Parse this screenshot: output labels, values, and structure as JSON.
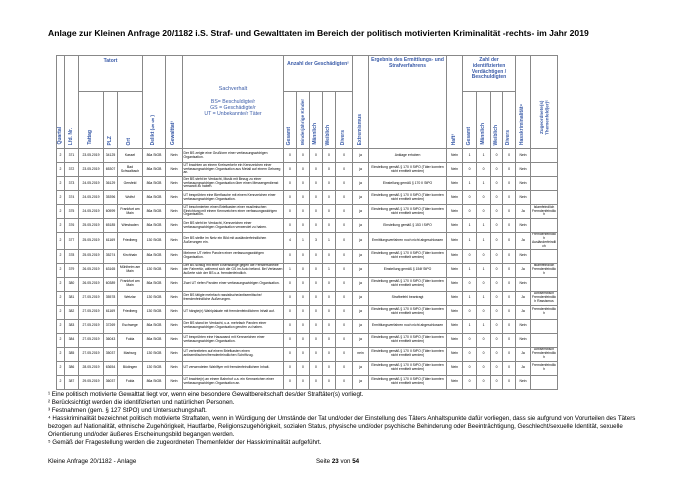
{
  "header": {
    "title": "Anlage zur Kleinen Anfrage 20/1182 i.S. Straf- und Gewalttaten im Bereich der politisch motivierten Kriminalität -rechts- im Jahr 2019"
  },
  "table": {
    "header": {
      "quartal": "Quartal",
      "nr": "Lfd. Nr.",
      "tatort": "Tatort",
      "tattag": "Tattag",
      "plz": "PLZ",
      "ort": "Ort",
      "delikt": "Delikt (§§)",
      "gewalt": "Gewalttat¹",
      "sachverhalt": "Sachverhalt",
      "legend": "BS= Beschuldigte/r\nGS = Geschädigte/r\nUT = Unbekannte/r Täter",
      "anzahl": "Anzahl der Geschädigten²",
      "a_gesamt": "Gesamt",
      "a_minder": "Minderjährige Kinder",
      "a_m": "Männlich",
      "a_w": "Weiblich",
      "a_d": "Divers",
      "extremismus": "Extremismus",
      "ergebnis": "Ergebnis des Ermittlungs- und Strafverfahrens",
      "haft": "Haft³",
      "zahl": "Zahl der identifizierten Verdächtigen / Beschuldigten",
      "z_gesamt": "Gesamt",
      "z_m": "Männlich",
      "z_w": "Weiblich",
      "z_d": "Divers",
      "hass": "Hasskriminalität⁴",
      "themen": "Zugeordnete(s) Themenfeld(er)⁵"
    },
    "rows": [
      [
        2,
        371,
        "23.05.2019",
        34125,
        "Kassel",
        "86a StGB",
        "Nein",
        "Der BS zeigte eine Grußform einer verfassungswidrigen Organisation.",
        0,
        0,
        0,
        0,
        0,
        "ja",
        "Anklage erhoben",
        "Nein",
        1,
        1,
        0,
        0,
        "Nein",
        null
      ],
      [
        2,
        372,
        "23.05.2019",
        65307,
        "Bad Schwalbach",
        "86a StGB",
        "Nein",
        "UT brachten an einem Kreisverkehr ein Kennzeichen einer verfassungswidrigen Organisation aus Metall auf einem Gehweg an.",
        0,
        0,
        0,
        0,
        0,
        "ja",
        "Einstellung gemäß § 170 II StPO (Täter konnten nicht ermittelt werden)",
        "Nein",
        0,
        0,
        0,
        0,
        "Nein",
        null
      ],
      [
        2,
        373,
        "24.05.2019",
        36129,
        "Gersfeld",
        "86a StGB",
        "Nein",
        "Der BS steht im Verdacht, Musik mit Bezug zu einer verfassungswidrigen Organisation über einen Messengerdienst versandt zu haben.",
        0,
        0,
        0,
        0,
        0,
        "ja",
        "Einstellung gemäß § 170 II StPO",
        "Nein",
        1,
        1,
        0,
        0,
        "Nein",
        null
      ],
      [
        2,
        374,
        "24.05.2019",
        35396,
        "Wolfsf",
        "86a StGB",
        "Nein",
        "UT besprühten eine Bierflasche mit einem Kennzeichen einer verfassungswidrigen Organisation.",
        0,
        0,
        0,
        0,
        0,
        "ja",
        "Einstellung gemäß § 170 II StPO (Täter konnten nicht ermittelt werden)",
        "Nein",
        0,
        0,
        0,
        0,
        "Nein",
        null
      ],
      [
        2,
        375,
        "24.05.2019",
        60599,
        "Frankfurt am Main",
        "86a StGB",
        "Nein",
        "UT beschmierten einen Briefkasten einer muslimischen Einrichtung mit einem Kennzeichen einer verfassungswidrigen Organisation.",
        0,
        0,
        0,
        0,
        0,
        "ja",
        "Einstellung gemäß § 170 II StPO (Täter konnten nicht ermittelt werden)",
        "Nein",
        0,
        0,
        0,
        0,
        "Ja",
        "Islamfeindlich Fremdenfeindlich"
      ],
      [
        2,
        376,
        "25.05.2019",
        65185,
        "Wiesbaden",
        "86a StGB",
        "Nein",
        "Der BS steht im Verdacht, Kennzeichen einer verfassungswidrigen Organisation verwendet zu haben.",
        0,
        0,
        0,
        0,
        0,
        "ja",
        "Einstellung gemäß § 153 I StPO",
        "Nein",
        1,
        1,
        0,
        0,
        "Nein",
        null
      ],
      [
        2,
        377,
        "25.05.2019",
        61169,
        "Friedberg",
        "130 StGB",
        "Nein",
        "Der BS stellte im Netz ein Bild mit ausländerfeindlichen Äußerungen ein.",
        4,
        1,
        3,
        1,
        0,
        "ja",
        "Ermittlungsverfahren noch nicht abgeschlossen",
        "Nein",
        1,
        1,
        0,
        0,
        "Ja",
        "Fremdenfeindlich Ausländerfeindlich"
      ],
      [
        2,
        378,
        "25.05.2019",
        35274,
        "Kirchhain",
        "86a StGB",
        "Nein",
        "Mehrere UT riefen Parolen einer verfassungswidrigen Organisation.",
        0,
        0,
        0,
        0,
        0,
        "ja",
        "Einstellung gemäß § 170 II StPO (Täter konnten nicht ermittelt werden)",
        "Nein",
        0,
        0,
        0,
        0,
        "Nein",
        null
      ],
      [
        2,
        379,
        "26.05.2019",
        63165,
        "Mühlheim am Main",
        "130 StGB",
        "Nein",
        "Der BS schlug mit einer Eisenstange gegen die Fensterscheibe der Fahrertür, während sich die GS im Auto befand. Bei Verlassen äußerte sich der BS u.a. fremdenfeindlich.",
        1,
        0,
        0,
        1,
        0,
        "ja",
        "Einstellung gemäß § 154f StPO",
        "Nein",
        1,
        1,
        0,
        0,
        "Ja",
        "Islamfeindlich Fremdenfeindlich"
      ],
      [
        2,
        380,
        "26.05.2019",
        60389,
        "Frankfurt am Main",
        "86a StGB",
        "Nein",
        "Zwei UT riefen Parolen einer verfassungswidrigen Organisation.",
        0,
        0,
        0,
        0,
        0,
        "ja",
        "Einstellung gemäß § 170 II StPO (Täter konnten nicht ermittelt werden)",
        "Nein",
        0,
        0,
        0,
        0,
        "Nein",
        null
      ],
      [
        2,
        381,
        "27.05.2019",
        35578,
        "Wetzlar",
        "130 StGB",
        "Nein",
        "Der BS tätigte mehrfach rassistische/antisemitische/ fremdenfeindliche Äußerungen.",
        0,
        0,
        0,
        0,
        0,
        "ja",
        "Strafbefehl beantragt",
        "Nein",
        1,
        1,
        0,
        0,
        "Ja",
        "Antisemitisch Fremdenfeindlich Rassismus"
      ],
      [
        2,
        382,
        "27.05.2019",
        61169,
        "Friedberg",
        "130 StGB",
        "Nein",
        "UT hängte(n) Wahlplakate mit fremdenfeindlichem Inhalt auf.",
        0,
        0,
        0,
        0,
        0,
        "ja",
        "Einstellung gemäß § 170 II StPO (Täter konnten nicht ermittelt werden)",
        "Nein",
        0,
        0,
        0,
        0,
        "Ja",
        "Fremdenfeindlich"
      ],
      [
        2,
        383,
        "27.05.2019",
        37269,
        "Eschwege",
        "86a StGB",
        "Nein",
        "Der BS stand im Verdacht, u.a. mehrfach Parolen einer verfassungswidrigen Organisation gerufen zu haben.",
        0,
        0,
        0,
        0,
        0,
        "ja",
        "Ermittlungsverfahren noch nicht abgeschlossen",
        "Nein",
        1,
        1,
        0,
        0,
        "Nein",
        null
      ],
      [
        2,
        384,
        "27.05.2019",
        36043,
        "Fulda",
        "86a StGB",
        "Nein",
        "UT besprühten eine Hauswand mit Kennzeichen einer verfassungswidrigen Organisation.",
        0,
        0,
        0,
        0,
        0,
        "ja",
        "Einstellung gemäß § 170 II StPO (Täter konnten nicht ermittelt werden)",
        "Nein",
        0,
        0,
        0,
        0,
        "Nein",
        null
      ],
      [
        2,
        385,
        "27.05.2019",
        35037,
        "Marburg",
        "130 StGB",
        "Nein",
        "UT verbreiteten auf einem Briefkasten einen antisemitischen/fremdenfeindlichen Schriftzug.",
        0,
        0,
        0,
        0,
        0,
        "nein",
        "Einstellung gemäß § 170 II StPO (Täter konnten nicht ermittelt werden)",
        "Nein",
        0,
        0,
        0,
        0,
        "Ja",
        "Antisemitisch Fremdenfeindlich"
      ],
      [
        2,
        386,
        "28.05.2019",
        63654,
        "Büdingen",
        "130 StGB",
        "Nein",
        "UT verwendeten Wahlflyer mit fremdenfeindlichem Inhalt.",
        0,
        0,
        0,
        0,
        0,
        "ja",
        "Einstellung gemäß § 170 II StPO (Täter konnten nicht ermittelt werden)",
        "Nein",
        0,
        0,
        0,
        0,
        "Ja",
        "Fremdenfeindlich"
      ],
      [
        2,
        387,
        "29.05.2019",
        36037,
        "Fulda",
        "86a StGB",
        "Nein",
        "UT brachte(n) an einem Bahnhof u.a. ein Kennzeichen einer verfassungswidrigen Organisation an.",
        0,
        0,
        0,
        0,
        0,
        "ja",
        "Einstellung gemäß § 170 II StPO (Täter konnten nicht ermittelt werden)",
        "Nein",
        0,
        0,
        0,
        0,
        "Nein",
        null
      ]
    ]
  },
  "footnotes": [
    "¹ Eine politisch motivierte Gewalttat liegt vor, wenn eine besondere Gewaltbereitschaft des/der Straftäter(s) vorliegt.",
    "² Berücksichtigt werden die identifizierten und natürlichen Personen.",
    "³ Festnahmen (gem. § 127 StPO) und Untersuchungshaft.",
    "⁴ Hasskriminalität bezeichnet politisch motivierte Straftaten, wenn in Würdigung der Umstände der Tat und/oder der Einstellung des Täters Anhaltspunkte dafür vorliegen, dass sie aufgrund von Vorurteilen des Täters bezogen auf Nationalität, ethnische Zugehörigkeit, Hautfarbe, Religionszugehörigkeit, sozialen Status, physische und/oder psychische Behinderung oder Beeinträchtigung, Geschlecht/sexuelle Identität, sexuelle Orientierung und/oder äußeres Erscheinungsbild begangen werden.",
    "⁵ Gemäß der Fragestellung werden die zugeordneten Themenfelder der Hasskriminalität aufgeführt."
  ],
  "footer": {
    "left": "Kleine Anfrage 20/1182 - Anlage",
    "page_prefix": "Seite",
    "page_current": "23",
    "page_sep": "von",
    "page_total": "54"
  }
}
